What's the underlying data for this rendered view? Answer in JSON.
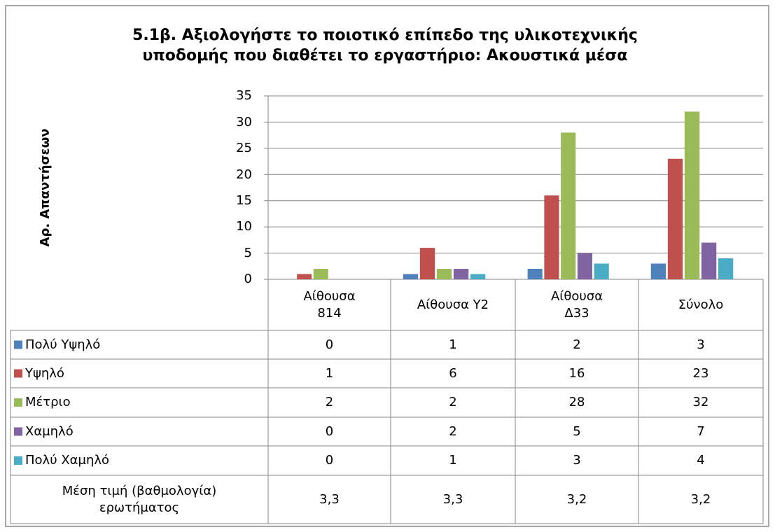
{
  "chart_data": {
    "type": "bar",
    "title": "5.1β. Αξιολογήστε το ποιοτικό επίπεδο της υλικοτεχνικής\nυποδομής που διαθέτει το εργαστήριο: Ακουστικά μέσα",
    "y_label": "Αρ. Απαντήσεων",
    "categories": [
      "Αίθουσα\n814",
      "Αίθουσα Υ2",
      "Αίθουσα\nΔ33",
      "Σύνολο"
    ],
    "series": [
      {
        "name": "Πολύ Υψηλό",
        "color": "#4f81bd",
        "values": [
          0,
          1,
          2,
          3
        ]
      },
      {
        "name": "Υψηλό",
        "color": "#c0504d",
        "values": [
          1,
          6,
          16,
          23
        ]
      },
      {
        "name": "Μέτριο",
        "color": "#9bbb59",
        "values": [
          2,
          2,
          28,
          32
        ]
      },
      {
        "name": "Χαμηλό",
        "color": "#8064a2",
        "values": [
          0,
          2,
          5,
          7
        ]
      },
      {
        "name": "Πολύ Χαμηλό",
        "color": "#4bacc6",
        "values": [
          0,
          1,
          3,
          4
        ]
      }
    ],
    "mean_row": {
      "label": "Μέση τιμή (βαθμολογία)\nερωτήματος",
      "values": [
        3.3,
        3.3,
        3.2,
        3.2
      ],
      "value_labels": [
        "3,3",
        "3,3",
        "3,2",
        "3,2"
      ]
    },
    "ylim": [
      0,
      35
    ],
    "yticks": [
      0,
      5,
      10,
      15,
      20,
      25,
      30,
      35
    ],
    "grid": true
  }
}
